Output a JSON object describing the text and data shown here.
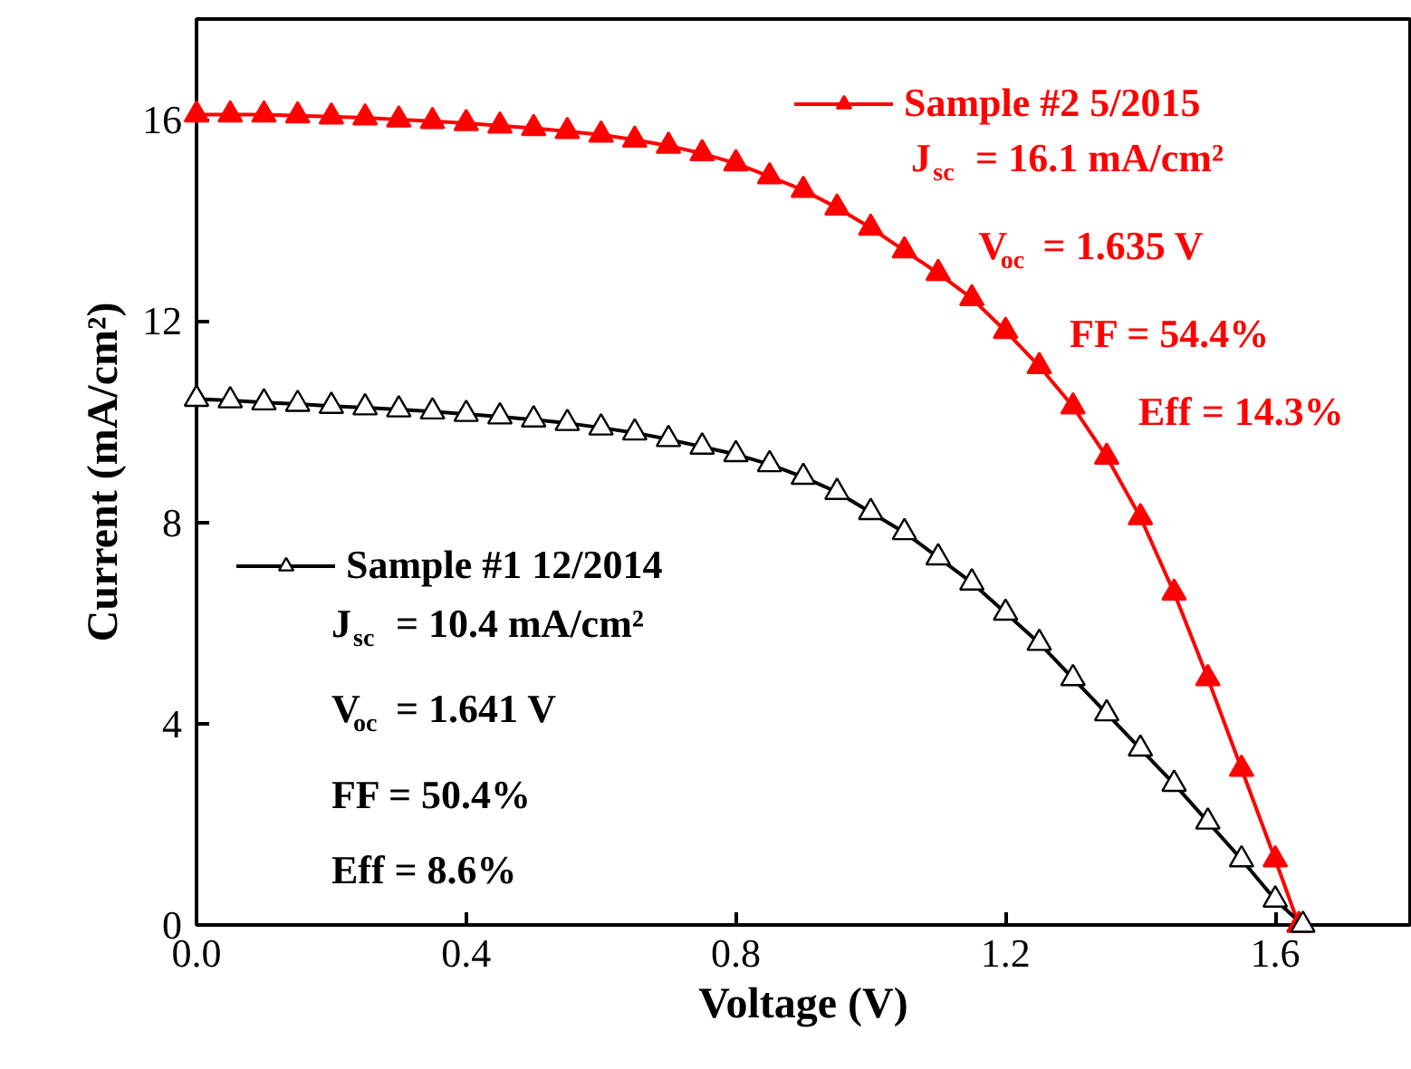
{
  "chart_data": {
    "type": "line",
    "xlabel": "Voltage (V)",
    "ylabel": "Current (mA/cm²)",
    "xlim": [
      0,
      1.8
    ],
    "ylim": [
      0,
      18
    ],
    "xticks": [
      {
        "value": 0,
        "label": "0.0"
      },
      0.4,
      0.8,
      1.2,
      1.6
    ],
    "yticks": [
      0,
      4,
      8,
      12,
      16
    ],
    "marker": "triangle",
    "line_style": "solid",
    "grid": false,
    "legend": "top",
    "series": [
      {
        "name": "Sample #2 5/2015",
        "color": "#ff0000",
        "x": [
          0,
          0.05,
          0.1,
          0.15,
          0.2,
          0.25,
          0.3,
          0.35,
          0.4,
          0.45,
          0.5,
          0.55,
          0.6,
          0.65,
          0.7,
          0.75,
          0.8,
          0.85,
          0.9,
          0.95,
          1.0,
          1.05,
          1.1,
          1.15,
          1.2,
          1.25,
          1.3,
          1.35,
          1.4,
          1.45,
          1.5,
          1.55,
          1.6,
          1.635
        ],
        "values": [
          16.1,
          16.1,
          16.1,
          16.08,
          16.06,
          16.04,
          16.0,
          15.97,
          15.93,
          15.88,
          15.83,
          15.77,
          15.7,
          15.6,
          15.48,
          15.33,
          15.13,
          14.87,
          14.6,
          14.25,
          13.85,
          13.4,
          12.95,
          12.45,
          11.8,
          11.1,
          10.3,
          9.3,
          8.1,
          6.6,
          4.9,
          3.1,
          1.3,
          0
        ]
      },
      {
        "name": "Sample #1 12/2014",
        "color": "#000000",
        "x": [
          0,
          0.05,
          0.1,
          0.15,
          0.2,
          0.25,
          0.3,
          0.35,
          0.4,
          0.45,
          0.5,
          0.55,
          0.6,
          0.65,
          0.7,
          0.75,
          0.8,
          0.85,
          0.9,
          0.95,
          1.0,
          1.05,
          1.1,
          1.15,
          1.2,
          1.25,
          1.3,
          1.35,
          1.4,
          1.45,
          1.5,
          1.55,
          1.6,
          1.641
        ],
        "values": [
          10.45,
          10.42,
          10.38,
          10.35,
          10.31,
          10.28,
          10.24,
          10.2,
          10.15,
          10.1,
          10.04,
          9.97,
          9.88,
          9.78,
          9.65,
          9.5,
          9.35,
          9.15,
          8.9,
          8.6,
          8.2,
          7.8,
          7.3,
          6.8,
          6.2,
          5.6,
          4.9,
          4.2,
          3.5,
          2.8,
          2.05,
          1.3,
          0.5,
          0
        ]
      }
    ],
    "annotations": [
      "J$_{sc}$ = 16.1 mA/cm²",
      "V$_{oc}$ = 1.635 V",
      "FF  = 54.4%",
      "Eff = 14.3%",
      "J$_{sc}$ = 10.4 mA/cm²",
      "V$_{oc}$ = 1.641 V",
      "FF  = 50.4%",
      "Eff = 8.6%"
    ]
  }
}
